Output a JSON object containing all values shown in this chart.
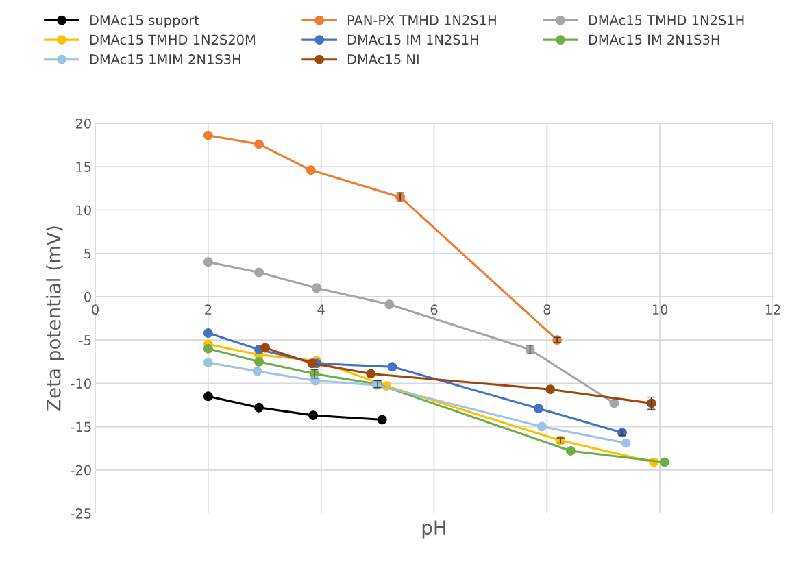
{
  "chart_data": {
    "type": "line",
    "xlabel": "pH",
    "ylabel": "Zeta potential (mV)",
    "xlim": [
      0,
      12
    ],
    "xticks": [
      0,
      2,
      4,
      6,
      8,
      10,
      12
    ],
    "ylim": [
      -25,
      20
    ],
    "yticks": [
      -25,
      -20,
      -15,
      -10,
      -5,
      0,
      5,
      10,
      15,
      20
    ],
    "grid": true,
    "legend": "top",
    "marker": "circle",
    "line_style": "solid",
    "series": [
      {
        "name": "DMAc15 support",
        "color": "#000000",
        "x": [
          2.0,
          2.9,
          3.86,
          5.08
        ],
        "values": [
          -11.5,
          -12.8,
          -13.7,
          -14.2
        ]
      },
      {
        "name": "PAN-PX TMHD 1N2S1H",
        "color": "#ed7d31",
        "x": [
          2.0,
          2.9,
          3.82,
          5.4,
          8.18
        ],
        "values": [
          18.6,
          17.6,
          14.6,
          11.5,
          -5.0
        ],
        "errors": [
          null,
          null,
          null,
          0.5,
          0.3
        ]
      },
      {
        "name": "DMAc15 TMHD 1N2S1H",
        "color": "#a5a5a5",
        "x": [
          2.0,
          2.9,
          3.92,
          5.21,
          7.7,
          9.19
        ],
        "values": [
          4.0,
          2.8,
          1.0,
          -0.9,
          -6.1,
          -12.3
        ],
        "errors": [
          null,
          null,
          null,
          null,
          0.5,
          null
        ]
      },
      {
        "name": "DMAc15 TMHD 1N2S20M",
        "color": "#ffc000",
        "x": [
          2.0,
          2.9,
          3.92,
          5.16,
          8.24,
          9.89
        ],
        "values": [
          -5.5,
          -6.7,
          -7.4,
          -10.3,
          -16.6,
          -19.1
        ],
        "errors": [
          null,
          null,
          null,
          null,
          0.3,
          null
        ]
      },
      {
        "name": "DMAc15 IM 1N2S1H",
        "color": "#4472c4",
        "x": [
          2.0,
          2.9,
          3.92,
          5.26,
          7.85,
          9.33
        ],
        "values": [
          -4.2,
          -6.1,
          -7.7,
          -8.1,
          -12.9,
          -15.7
        ],
        "errors": [
          null,
          null,
          null,
          null,
          null,
          0.3
        ]
      },
      {
        "name": "DMAc15 IM 2N1S3H",
        "color": "#70ad47",
        "x": [
          2.0,
          2.9,
          3.88,
          5.0,
          8.42,
          10.08
        ],
        "values": [
          -6.0,
          -7.5,
          -8.9,
          -10.1,
          -17.8,
          -19.1
        ],
        "errors": [
          null,
          null,
          0.5,
          0.4,
          null,
          null
        ]
      },
      {
        "name": "DMAc15 1MIM 2N1S3H",
        "color": "#9dc3e6",
        "x": [
          2.0,
          2.87,
          3.9,
          4.98,
          7.91,
          9.4
        ],
        "values": [
          -7.6,
          -8.6,
          -9.7,
          -10.2,
          -15.0,
          -16.9
        ]
      },
      {
        "name": "DMAc15 NI",
        "color": "#9e480e",
        "x": [
          3.01,
          3.84,
          4.88,
          8.06,
          9.85
        ],
        "values": [
          -5.9,
          -7.7,
          -8.9,
          -10.7,
          -12.3
        ],
        "errors": [
          null,
          null,
          null,
          null,
          0.7
        ]
      }
    ]
  }
}
